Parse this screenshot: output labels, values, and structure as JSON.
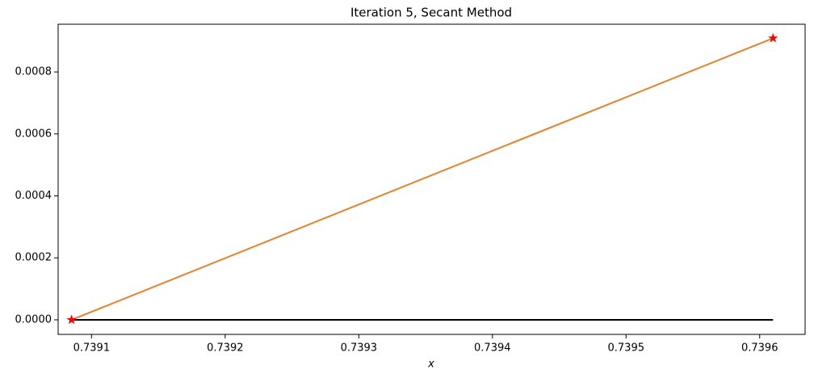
{
  "chart_data": {
    "type": "line",
    "title": "Iteration 5, Secant Method",
    "xlabel": "x",
    "xlim": [
      0.739075,
      0.739634
    ],
    "ylim": [
      -4.7e-05,
      0.000954
    ],
    "xticks": [
      0.7391,
      0.7392,
      0.7393,
      0.7394,
      0.7395,
      0.7396
    ],
    "yticks": [
      {
        "value": 0,
        "label": "0.0000"
      },
      0.0002,
      0.0004,
      0.0006,
      0.0008
    ],
    "series": [
      {
        "color": "#000000",
        "line": true,
        "marker": false,
        "x": [
          0.739085,
          0.73961
        ],
        "values": [
          0,
          0
        ]
      },
      {
        "color": "#e8822a",
        "line": true,
        "marker": false,
        "x": [
          0.739085,
          0.73961
        ],
        "values": [
          0,
          0.000909
        ]
      },
      {
        "color": "#ff0000",
        "line": false,
        "marker": true,
        "x": [
          0.739085,
          0.73961
        ],
        "values": [
          0,
          0.000909
        ]
      }
    ]
  }
}
